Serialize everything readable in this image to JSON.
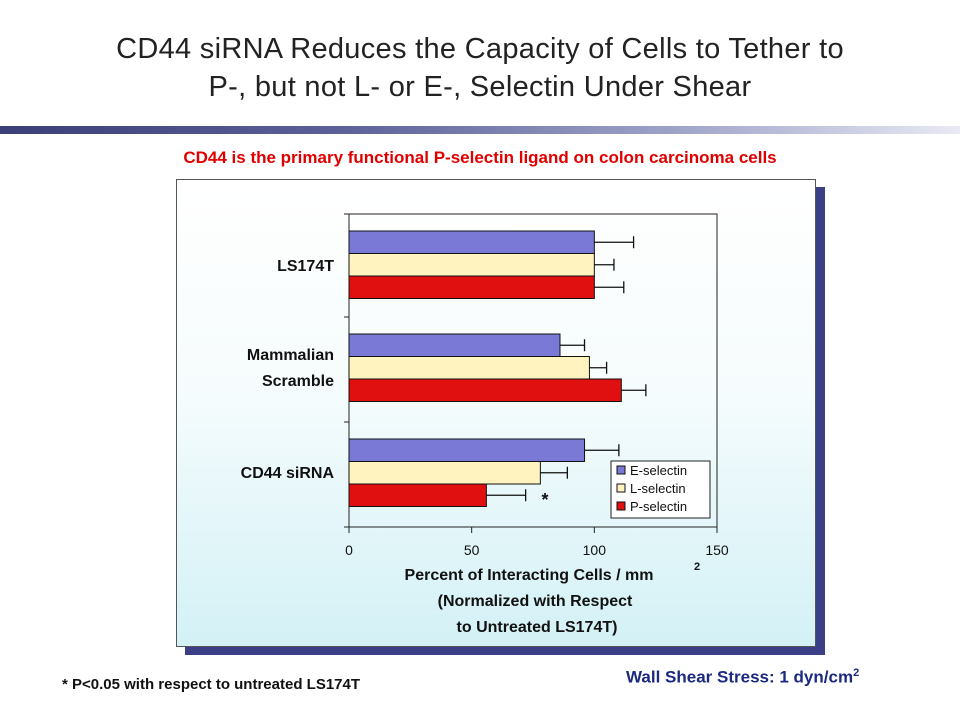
{
  "title_line1": "CD44 siRNA Reduces the Capacity of Cells to Tether to",
  "title_line2": "P-, but not L- or E-, Selectin Under Shear",
  "subtitle": "CD44 is the primary functional P-selectin ligand on colon carcinoma cells",
  "footnote": "* P<0.05 with respect to untreated LS174T",
  "shear_text": "Wall Shear Stress: 1 dyn/cm",
  "shear_sup": "2",
  "chart_data": {
    "type": "bar",
    "orientation": "horizontal",
    "categories": [
      "LS174T",
      "Mammalian Scramble",
      "CD44 siRNA"
    ],
    "category_label_lines": [
      [
        "LS174T"
      ],
      [
        "Mammalian",
        "Scramble"
      ],
      [
        "CD44 siRNA"
      ]
    ],
    "series": [
      {
        "name": "E-selectin",
        "color": "#7a7ad6",
        "values": [
          100,
          86,
          96
        ],
        "errors": [
          16,
          10,
          14
        ]
      },
      {
        "name": "L-selectin",
        "color": "#fff3c0",
        "values": [
          100,
          98,
          78
        ],
        "errors": [
          8,
          7,
          11
        ]
      },
      {
        "name": "P-selectin",
        "color": "#e01010",
        "values": [
          100,
          111,
          56
        ],
        "errors": [
          12,
          10,
          16
        ]
      }
    ],
    "xlabel_lines": [
      "Percent of Interacting Cells / mm",
      "(Normalized with Respect",
      "to Untreated LS174T)"
    ],
    "xlabel_sup": "2",
    "xlim": [
      0,
      150
    ],
    "xticks": [
      "0",
      "50",
      "100",
      "150"
    ],
    "annotation": "*",
    "legend_position": "bottom-right",
    "grid": false
  }
}
